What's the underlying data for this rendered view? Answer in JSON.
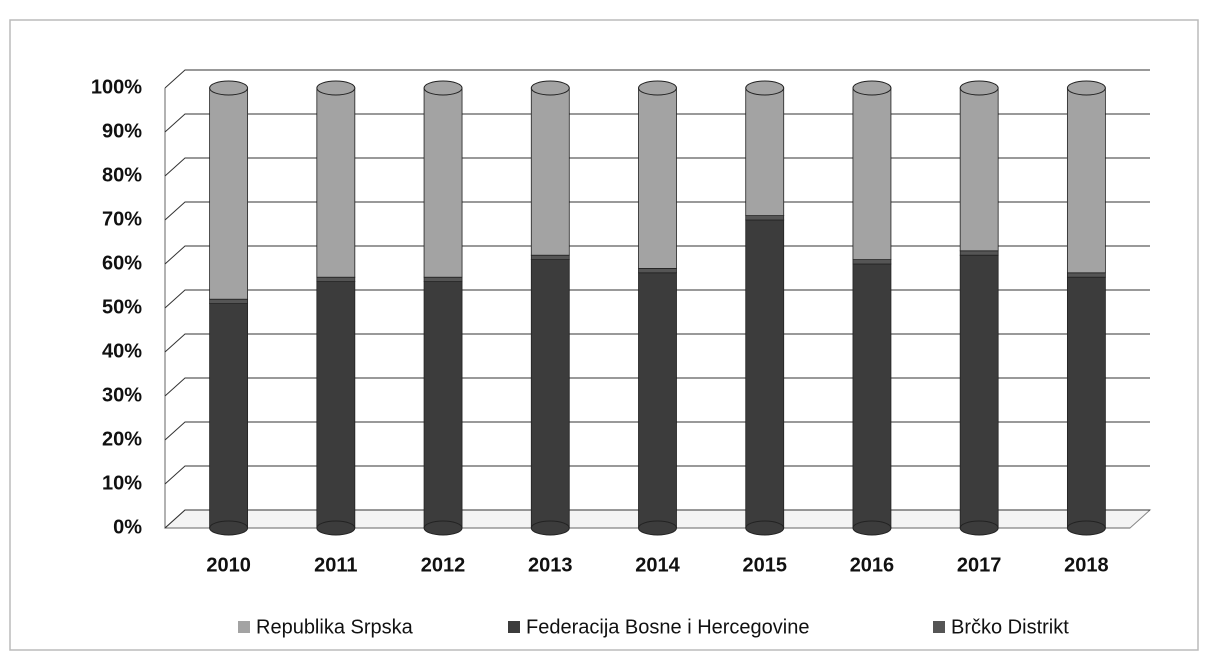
{
  "chart_data": {
    "type": "stacked_cylinder",
    "categories": [
      "2010",
      "2011",
      "2012",
      "2013",
      "2014",
      "2015",
      "2016",
      "2017",
      "2018"
    ],
    "series": [
      {
        "name": "Republika Srpska",
        "color": "#a3a3a3",
        "values": [
          48,
          43,
          43,
          38,
          41,
          29,
          39,
          37,
          42
        ]
      },
      {
        "name": "Federacija Bosne i Hercegovine",
        "color": "#3c3c3c",
        "values": [
          51,
          56,
          56,
          61,
          58,
          70,
          60,
          62,
          57
        ]
      },
      {
        "name": "Brčko Distrikt",
        "color": "#555555",
        "values": [
          1,
          1,
          1,
          1,
          1,
          1,
          1,
          1,
          1
        ]
      }
    ],
    "ylim": [
      0,
      100
    ],
    "yticks": [
      {
        "value": 0,
        "label": "0%"
      },
      {
        "value": 10,
        "label": "10%"
      },
      {
        "value": 20,
        "label": "20%"
      },
      {
        "value": 30,
        "label": "30%"
      },
      {
        "value": 40,
        "label": "40%"
      },
      {
        "value": 50,
        "label": "50%"
      },
      {
        "value": 60,
        "label": "60%"
      },
      {
        "value": 70,
        "label": "70%"
      },
      {
        "value": 80,
        "label": "80%"
      },
      {
        "value": 90,
        "label": "90%"
      },
      {
        "value": 100,
        "label": "100%"
      }
    ],
    "grid": true
  }
}
